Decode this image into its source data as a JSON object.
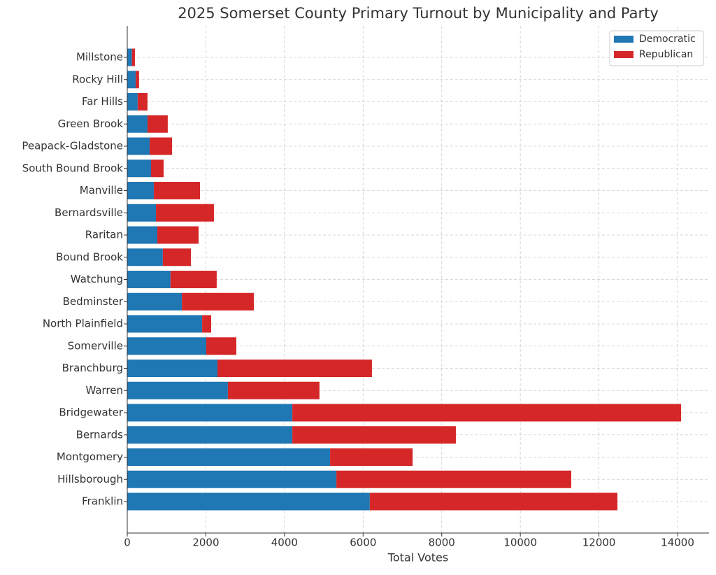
{
  "chart_data": {
    "type": "stacked_barh",
    "title": "2025 Somerset County Primary Turnout by Municipality and Party",
    "x_label": "Total Votes",
    "categories": [
      "Millstone",
      "Rocky Hill",
      "Far Hills",
      "Green Brook",
      "Peapack-Gladstone",
      "South Bound Brook",
      "Manville",
      "Bernardsville",
      "Raritan",
      "Bound Brook",
      "Watchung",
      "Bedminster",
      "North Plainfield",
      "Somerville",
      "Branchburg",
      "Warren",
      "Bridgewater",
      "Bernards",
      "Montgomery",
      "Hillsborough",
      "Franklin"
    ],
    "series": [
      {
        "name": "Democratic",
        "color": "#1f77b4",
        "values": [
          120,
          215,
          265,
          515,
          570,
          605,
          675,
          730,
          765,
          905,
          1100,
          1390,
          1905,
          2010,
          2295,
          2560,
          4200,
          4200,
          5160,
          5320,
          6170
        ]
      },
      {
        "name": "Republican",
        "color": "#d62728",
        "values": [
          75,
          85,
          250,
          515,
          570,
          320,
          1175,
          1475,
          1050,
          715,
          1175,
          1830,
          230,
          765,
          3930,
          2330,
          9890,
          4160,
          2100,
          5975,
          6300
        ]
      }
    ],
    "xlim": [
      0,
      14800
    ],
    "xticks": [
      0,
      2000,
      4000,
      6000,
      8000,
      10000,
      12000,
      14000
    ],
    "grid": true,
    "legend": "upper right"
  }
}
